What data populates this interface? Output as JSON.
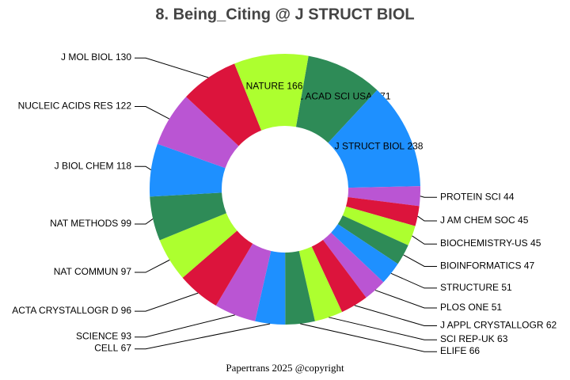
{
  "chart_data": {
    "type": "donut",
    "title": "8. Being_Citing @ J STRUCT BIOL",
    "footer": "Papertrans 2025 @copyright",
    "categories": [
      "P NATL ACAD SCI USA",
      "J STRUCT BIOL",
      "PROTEIN SCI",
      "J AM CHEM SOC",
      "BIOCHEMISTRY-US",
      "BIOINFORMATICS",
      "STRUCTURE",
      "PLOS ONE",
      "J APPL CRYSTALLOGR",
      "SCI REP-UK",
      "ELIFE",
      "CELL",
      "SCIENCE",
      "ACTA CRYSTALLOGR D",
      "NAT COMMUN",
      "NAT METHODS",
      "J BIOL CHEM",
      "NUCLEIC ACIDS RES",
      "J MOL BIOL",
      "NATURE"
    ],
    "values": [
      171,
      238,
      44,
      45,
      45,
      47,
      51,
      51,
      62,
      63,
      66,
      67,
      93,
      96,
      97,
      99,
      118,
      122,
      130,
      166
    ],
    "colors": [
      "#2e8b57",
      "#1e90ff",
      "#ba55d3",
      "#dc143c",
      "#adff2f"
    ]
  }
}
